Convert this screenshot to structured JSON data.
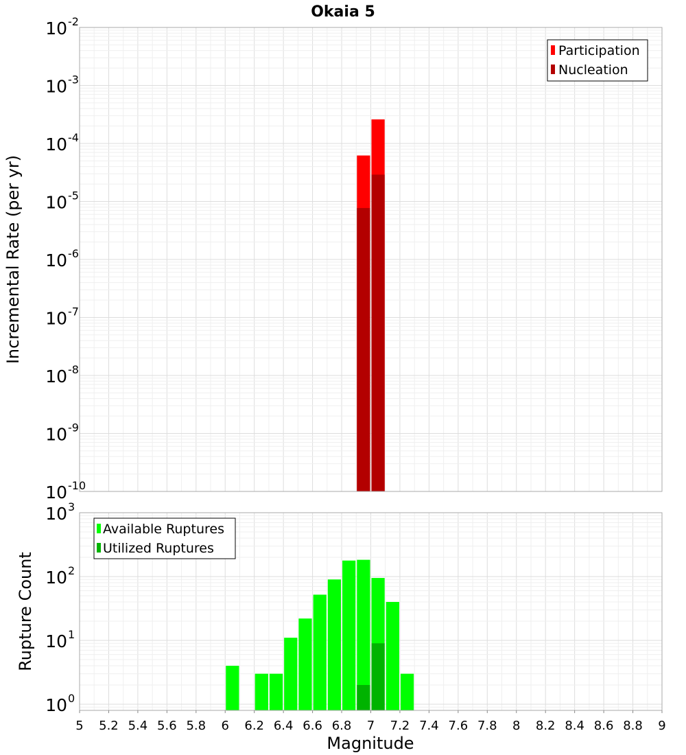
{
  "chart_data": [
    {
      "type": "bar",
      "title": "Okaia 5",
      "xlabel": "",
      "ylabel": "Incremental Rate (per yr)",
      "yscale": "log",
      "ylim": [
        1e-10,
        0.01
      ],
      "xlim": [
        5,
        9
      ],
      "grid": true,
      "legend_position": "top-right",
      "ytick_labels": [
        {
          "base": "10",
          "exp": "-10"
        },
        {
          "base": "10",
          "exp": "-9"
        },
        {
          "base": "10",
          "exp": "-8"
        },
        {
          "base": "10",
          "exp": "-7"
        },
        {
          "base": "10",
          "exp": "-6"
        },
        {
          "base": "10",
          "exp": "-5"
        },
        {
          "base": "10",
          "exp": "-4"
        },
        {
          "base": "10",
          "exp": "-3"
        },
        {
          "base": "10",
          "exp": "-2"
        }
      ],
      "bar_width": 0.1,
      "series": [
        {
          "name": "Participation",
          "color": "#ff0000",
          "x": [
            6.95,
            7.05
          ],
          "values": [
            6.2e-05,
            0.00026
          ]
        },
        {
          "name": "Nucleation",
          "color": "#b30000",
          "x": [
            6.95,
            7.05
          ],
          "values": [
            7.7e-06,
            2.9e-05
          ]
        }
      ]
    },
    {
      "type": "bar",
      "title": "",
      "xlabel": "Magnitude",
      "ylabel": "Rupture Count",
      "yscale": "log",
      "ylim": [
        0.8,
        1000
      ],
      "xlim": [
        5,
        9
      ],
      "grid": true,
      "legend_position": "top-left",
      "ytick_labels": [
        {
          "base": "10",
          "exp": "0"
        },
        {
          "base": "10",
          "exp": "1"
        },
        {
          "base": "10",
          "exp": "2"
        },
        {
          "base": "10",
          "exp": "3"
        }
      ],
      "xticks": [
        "5",
        "5.2",
        "5.4",
        "5.6",
        "5.8",
        "6",
        "6.2",
        "6.4",
        "6.6",
        "6.8",
        "7",
        "7.2",
        "7.4",
        "7.6",
        "7.8",
        "8",
        "8.2",
        "8.4",
        "8.6",
        "8.8",
        "9"
      ],
      "bar_width": 0.1,
      "series": [
        {
          "name": "Available Ruptures",
          "color": "#00ff00",
          "x": [
            6.05,
            6.25,
            6.35,
            6.45,
            6.55,
            6.65,
            6.75,
            6.85,
            6.95,
            7.05,
            7.15,
            7.25
          ],
          "values": [
            4,
            3,
            3,
            11,
            22,
            52,
            90,
            178,
            183,
            95,
            40,
            3
          ]
        },
        {
          "name": "Utilized Ruptures",
          "color": "#00b300",
          "x": [
            6.95,
            7.05
          ],
          "values": [
            2,
            9
          ]
        }
      ]
    }
  ]
}
